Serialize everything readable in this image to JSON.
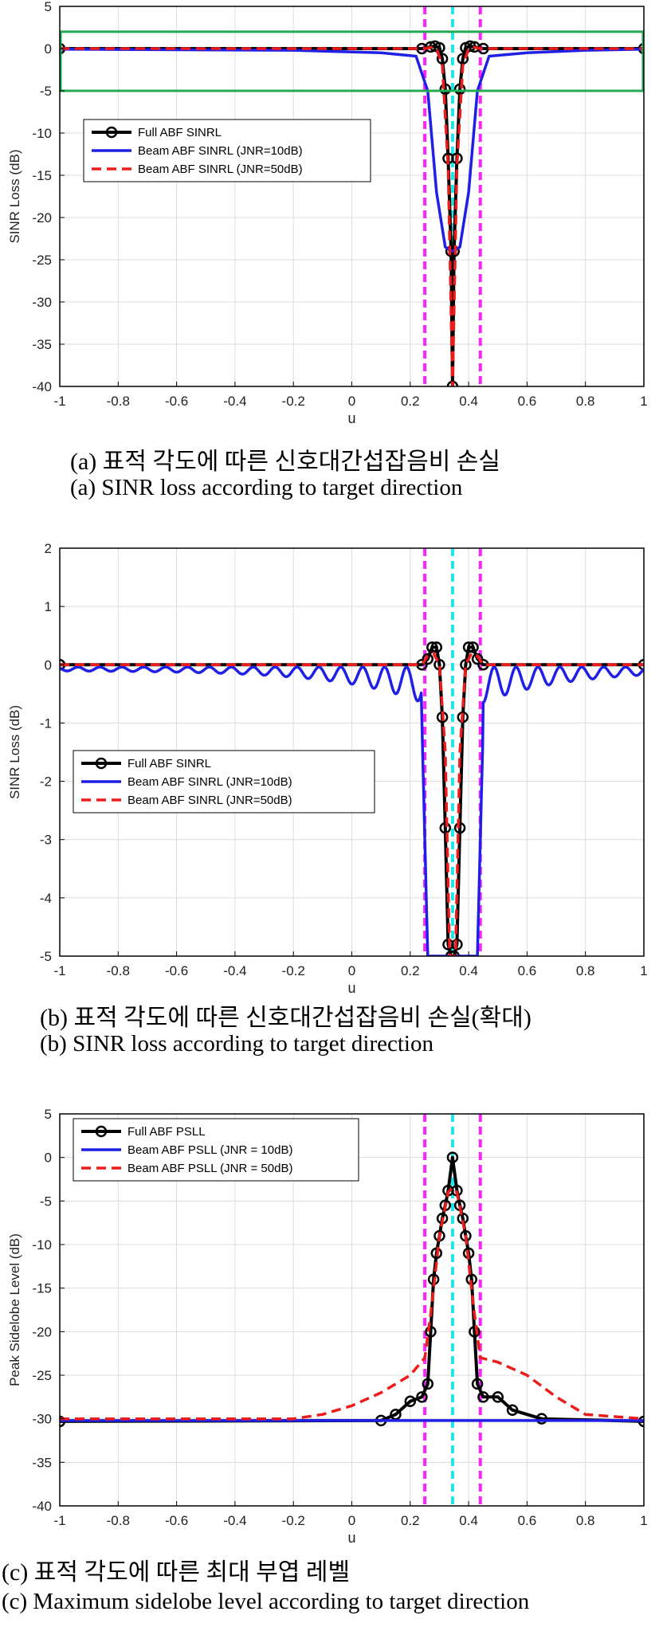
{
  "figures": [
    {
      "caption_ko": "(a) 표적 각도에 따른 신호대간섭잡음비 손실",
      "caption_en": "(a) SINR loss according to target direction"
    },
    {
      "caption_ko": "(b) 표적 각도에 따른 신호대간섭잡음비 손실(확대)",
      "caption_en": "(b) SINR loss according to target direction"
    },
    {
      "caption_ko": "(c) 표적 각도에 따른 최대 부엽 레벨",
      "caption_en": "(c) Maximum sidelobe level according to target direction"
    }
  ],
  "colors": {
    "full": "#000000",
    "beam10": "#1f1fe6",
    "beam50": "#ee1b1b",
    "magenta": "#ff22ff",
    "cyan": "#22e6e6",
    "highlight_box": "#22aa55",
    "grid": "#dcdcdc"
  },
  "chart_data": [
    {
      "type": "line",
      "xlabel": "u",
      "ylabel": "SINR Loss (dB)",
      "xlim": [
        -1,
        1
      ],
      "ylim": [
        -40,
        5
      ],
      "xticks": [
        "-1",
        "-0.8",
        "-0.6",
        "-0.4",
        "-0.2",
        "0",
        "0.2",
        "0.4",
        "0.6",
        "0.8",
        "1"
      ],
      "yticks": [
        "5",
        "0",
        "-5",
        "-10",
        "-15",
        "-20",
        "-25",
        "-30",
        "-35",
        "-40"
      ],
      "legend": [
        "Full ABF SINRL",
        "Beam ABF SINRL (JNR=10dB)",
        "Beam ABF SINRL (JNR=50dB)"
      ],
      "legend_position": "middle-left",
      "grid": true,
      "vlines_magenta": [
        0.25,
        0.44
      ],
      "vline_cyan": 0.345,
      "highlight_box": {
        "x": [
          -1,
          1
        ],
        "y": [
          -5,
          2
        ]
      },
      "series": [
        {
          "name": "Full ABF SINRL",
          "style": "solid-circle",
          "points": [
            [
              -1,
              0
            ],
            [
              0.24,
              0
            ],
            [
              0.27,
              0.2
            ],
            [
              0.285,
              0.3
            ],
            [
              0.3,
              0.1
            ],
            [
              0.31,
              -1.2
            ],
            [
              0.32,
              -4.8
            ],
            [
              0.33,
              -13
            ],
            [
              0.34,
              -24
            ],
            [
              0.345,
              -40
            ],
            [
              0.35,
              -24
            ],
            [
              0.36,
              -13
            ],
            [
              0.37,
              -4.8
            ],
            [
              0.38,
              -1.2
            ],
            [
              0.39,
              0.1
            ],
            [
              0.405,
              0.3
            ],
            [
              0.42,
              0.2
            ],
            [
              0.45,
              0
            ],
            [
              1,
              0
            ]
          ]
        },
        {
          "name": "Beam ABF SINRL (JNR=10dB)",
          "style": "solid",
          "points": [
            [
              -1,
              -0.08
            ],
            [
              -0.2,
              -0.2
            ],
            [
              0.1,
              -0.5
            ],
            [
              0.22,
              -0.9
            ],
            [
              0.26,
              -5
            ],
            [
              0.29,
              -17
            ],
            [
              0.32,
              -23.5
            ],
            [
              0.345,
              -24
            ],
            [
              0.37,
              -23.5
            ],
            [
              0.4,
              -17
            ],
            [
              0.43,
              -5
            ],
            [
              0.47,
              -0.9
            ],
            [
              0.6,
              -0.5
            ],
            [
              0.8,
              -0.2
            ],
            [
              1,
              -0.08
            ]
          ]
        },
        {
          "name": "Beam ABF SINRL (JNR=50dB)",
          "style": "dashed",
          "points": [
            [
              -1,
              0
            ],
            [
              0.25,
              0
            ],
            [
              0.27,
              0.15
            ],
            [
              0.29,
              0
            ],
            [
              0.31,
              -2
            ],
            [
              0.33,
              -14
            ],
            [
              0.345,
              -40
            ],
            [
              0.36,
              -14
            ],
            [
              0.38,
              -2
            ],
            [
              0.4,
              0
            ],
            [
              0.42,
              0.15
            ],
            [
              0.44,
              0
            ],
            [
              1,
              0
            ]
          ]
        }
      ]
    },
    {
      "type": "line",
      "xlabel": "u",
      "ylabel": "SINR Loss (dB)",
      "xlim": [
        -1,
        1
      ],
      "ylim": [
        -5,
        2
      ],
      "xticks": [
        "-1",
        "-0.8",
        "-0.6",
        "-0.4",
        "-0.2",
        "0",
        "0.2",
        "0.4",
        "0.6",
        "0.8",
        "1"
      ],
      "yticks": [
        "2",
        "1",
        "0",
        "-1",
        "-2",
        "-3",
        "-4",
        "-5"
      ],
      "legend": [
        "Full ABF SINRL",
        "Beam ABF SINRL (JNR=10dB)",
        "Beam ABF SINRL (JNR=50dB)"
      ],
      "legend_position": "middle-left",
      "grid": true,
      "vlines_magenta": [
        0.25,
        0.44
      ],
      "vline_cyan": 0.345,
      "series": [
        {
          "name": "Full ABF SINRL",
          "style": "solid-circle",
          "points": [
            [
              -1,
              0
            ],
            [
              0.24,
              0
            ],
            [
              0.26,
              0.1
            ],
            [
              0.275,
              0.3
            ],
            [
              0.29,
              0.3
            ],
            [
              0.3,
              0
            ],
            [
              0.31,
              -0.9
            ],
            [
              0.32,
              -2.8
            ],
            [
              0.33,
              -4.8
            ],
            [
              0.34,
              -5
            ],
            [
              0.35,
              -5
            ],
            [
              0.36,
              -4.8
            ],
            [
              0.37,
              -2.8
            ],
            [
              0.38,
              -0.9
            ],
            [
              0.39,
              0
            ],
            [
              0.4,
              0.3
            ],
            [
              0.415,
              0.3
            ],
            [
              0.43,
              0.1
            ],
            [
              0.45,
              0
            ],
            [
              1,
              0
            ]
          ]
        },
        {
          "name": "Beam ABF SINRL (JNR=10dB)",
          "style": "solid",
          "osc": true,
          "points": [
            [
              -1,
              -0.1
            ],
            [
              -0.4,
              -0.2
            ],
            [
              -0.1,
              -0.45
            ],
            [
              0.1,
              -0.7
            ],
            [
              0.2,
              -0.9
            ],
            [
              0.24,
              -1
            ],
            [
              0.26,
              -5
            ],
            [
              0.43,
              -5
            ],
            [
              0.45,
              -1
            ],
            [
              0.5,
              -0.9
            ],
            [
              0.6,
              -0.7
            ],
            [
              0.8,
              -0.4
            ],
            [
              1,
              -0.1
            ]
          ]
        },
        {
          "name": "Beam ABF SINRL (JNR=50dB)",
          "style": "dashed",
          "points": [
            [
              -1,
              0
            ],
            [
              0.24,
              0
            ],
            [
              0.26,
              0.15
            ],
            [
              0.28,
              0.2
            ],
            [
              0.3,
              0
            ],
            [
              0.32,
              -1.5
            ],
            [
              0.335,
              -5
            ],
            [
              0.355,
              -5
            ],
            [
              0.37,
              -1.5
            ],
            [
              0.39,
              0
            ],
            [
              0.41,
              0.2
            ],
            [
              0.43,
              0.15
            ],
            [
              0.45,
              0
            ],
            [
              1,
              0
            ]
          ]
        }
      ]
    },
    {
      "type": "line",
      "xlabel": "u",
      "ylabel": "Peak Sidelobe Level (dB)",
      "xlim": [
        -1,
        1
      ],
      "ylim": [
        -40,
        5
      ],
      "xticks": [
        "-1",
        "-0.8",
        "-0.6",
        "-0.4",
        "-0.2",
        "0",
        "0.2",
        "0.4",
        "0.6",
        "0.8",
        "1"
      ],
      "yticks": [
        "5",
        "0",
        "-5",
        "-10",
        "-15",
        "-20",
        "-25",
        "-30",
        "-35",
        "-40"
      ],
      "legend": [
        "Full ABF PSLL",
        "Beam ABF PSLL (JNR = 10dB)",
        "Beam ABF PSLL (JNR = 50dB)"
      ],
      "legend_position": "top-left",
      "grid": true,
      "vlines_magenta": [
        0.25,
        0.44
      ],
      "vline_cyan": 0.345,
      "series": [
        {
          "name": "Full ABF PSLL",
          "style": "solid-circle",
          "points": [
            [
              -1,
              -30.3
            ],
            [
              0.1,
              -30.2
            ],
            [
              0.15,
              -29.5
            ],
            [
              0.2,
              -28
            ],
            [
              0.24,
              -27.5
            ],
            [
              0.26,
              -26
            ],
            [
              0.27,
              -20
            ],
            [
              0.28,
              -14
            ],
            [
              0.29,
              -11
            ],
            [
              0.3,
              -9
            ],
            [
              0.31,
              -7
            ],
            [
              0.32,
              -5.5
            ],
            [
              0.33,
              -3.8
            ],
            [
              0.345,
              0
            ],
            [
              0.36,
              -3.8
            ],
            [
              0.37,
              -5.5
            ],
            [
              0.38,
              -7
            ],
            [
              0.39,
              -9
            ],
            [
              0.4,
              -11
            ],
            [
              0.41,
              -14
            ],
            [
              0.42,
              -20
            ],
            [
              0.43,
              -26
            ],
            [
              0.45,
              -27.5
            ],
            [
              0.5,
              -27.5
            ],
            [
              0.55,
              -29
            ],
            [
              0.65,
              -30
            ],
            [
              1,
              -30.3
            ]
          ]
        },
        {
          "name": "Beam ABF PSLL (JNR = 10dB)",
          "style": "solid",
          "points": [
            [
              -1,
              -30.2
            ],
            [
              1,
              -30.2
            ]
          ]
        },
        {
          "name": "Beam ABF PSLL (JNR = 50dB)",
          "style": "dashed",
          "points": [
            [
              -1,
              -30
            ],
            [
              -0.2,
              -30
            ],
            [
              -0.1,
              -29.5
            ],
            [
              0,
              -28.5
            ],
            [
              0.1,
              -27
            ],
            [
              0.2,
              -25
            ],
            [
              0.25,
              -23
            ],
            [
              0.27,
              -18
            ],
            [
              0.3,
              -9
            ],
            [
              0.33,
              -4
            ],
            [
              0.345,
              -3.5
            ],
            [
              0.36,
              -4
            ],
            [
              0.39,
              -9
            ],
            [
              0.42,
              -18
            ],
            [
              0.44,
              -23
            ],
            [
              0.5,
              -23.5
            ],
            [
              0.6,
              -25
            ],
            [
              0.7,
              -27.5
            ],
            [
              0.8,
              -29.5
            ],
            [
              1,
              -30
            ]
          ]
        }
      ]
    }
  ]
}
